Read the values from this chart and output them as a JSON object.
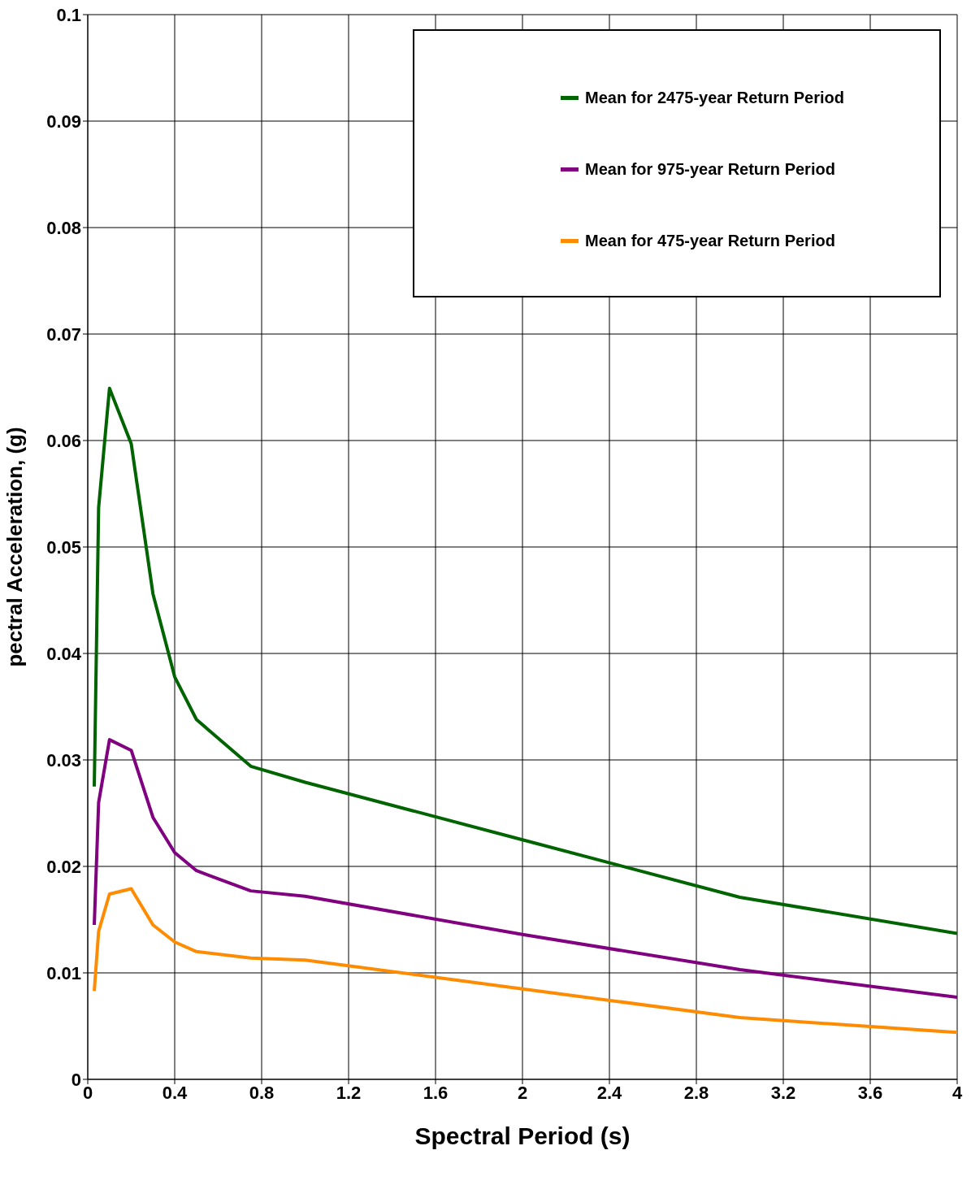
{
  "chart_data": {
    "type": "line",
    "xlabel": "Spectral Period (s)",
    "ylabel": "pectral Acceleration, (g)",
    "x": [
      0.03,
      0.05,
      0.1,
      0.2,
      0.3,
      0.4,
      0.5,
      0.75,
      1,
      2,
      3,
      4
    ],
    "series": [
      {
        "name": "Mean for 2475-year Return Period",
        "color": "#006400",
        "values": [
          0.0275,
          0.0537,
          0.0649,
          0.0597,
          0.0456,
          0.0378,
          0.0338,
          0.0294,
          0.0279,
          0.0225,
          0.0171,
          0.0137
        ]
      },
      {
        "name": "Mean for 975-year Return Period",
        "color": "#800080",
        "values": [
          0.0145,
          0.026,
          0.0319,
          0.0309,
          0.0246,
          0.0213,
          0.0196,
          0.0177,
          0.0172,
          0.0136,
          0.0103,
          0.0077
        ]
      },
      {
        "name": "Mean for 475-year Return Period",
        "color": "#ff8c00",
        "values": [
          0.0083,
          0.0139,
          0.0174,
          0.0179,
          0.0145,
          0.0129,
          0.012,
          0.0114,
          0.0112,
          0.0085,
          0.0058,
          0.0044
        ]
      }
    ],
    "xlim": [
      0,
      4
    ],
    "xticks": [
      0,
      0.4,
      0.8,
      1.2,
      1.6,
      2,
      2.4,
      2.8,
      3.2,
      3.6,
      4
    ],
    "ylim": [
      0,
      0.1
    ],
    "yticks": [
      0,
      0.01,
      0.02,
      0.03,
      0.04,
      0.05,
      0.06,
      0.07,
      0.08,
      0.09,
      0.1
    ],
    "grid": true,
    "legend": "top right",
    "marker": "none",
    "line_style": "solid"
  }
}
